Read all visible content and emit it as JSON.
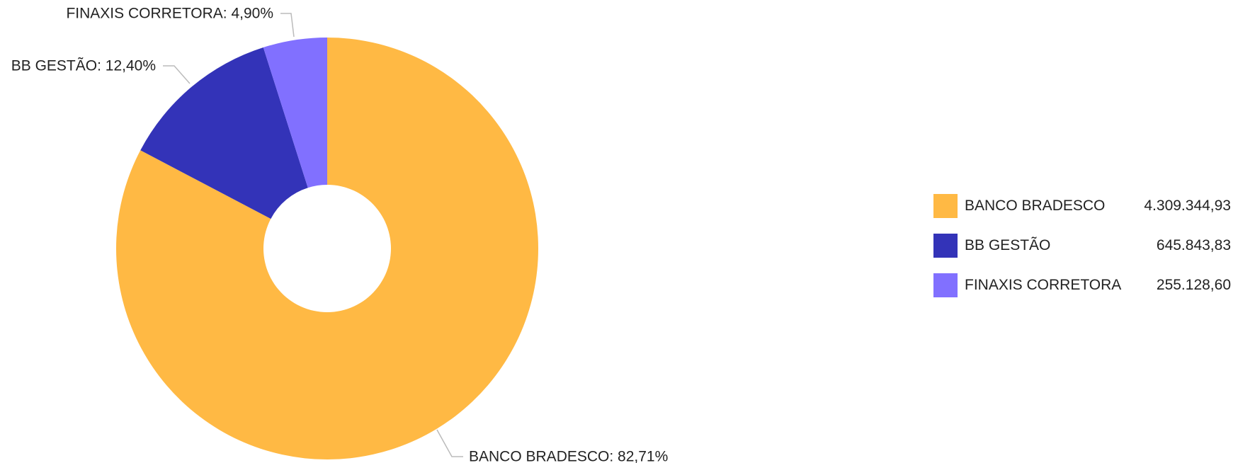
{
  "chart_data": {
    "type": "pie",
    "title": "",
    "donut": true,
    "legend_position": "right",
    "slices": [
      {
        "name": "BANCO BRADESCO",
        "value": 4309344.93,
        "value_label": "4.309.344,93",
        "percent": 82.71,
        "label": "BANCO BRADESCO: 82,71%",
        "color": "#FFB944"
      },
      {
        "name": "BB GESTÃO",
        "value": 645843.83,
        "value_label": "645.843,83",
        "percent": 12.4,
        "label": "BB GESTÃO: 12,40%",
        "color": "#3333B8"
      },
      {
        "name": "FINAXIS CORRETORA",
        "value": 255128.6,
        "value_label": "255.128,60",
        "percent": 4.9,
        "label": "FINAXIS CORRETORA: 4,90%",
        "color": "#8170FF"
      }
    ]
  }
}
